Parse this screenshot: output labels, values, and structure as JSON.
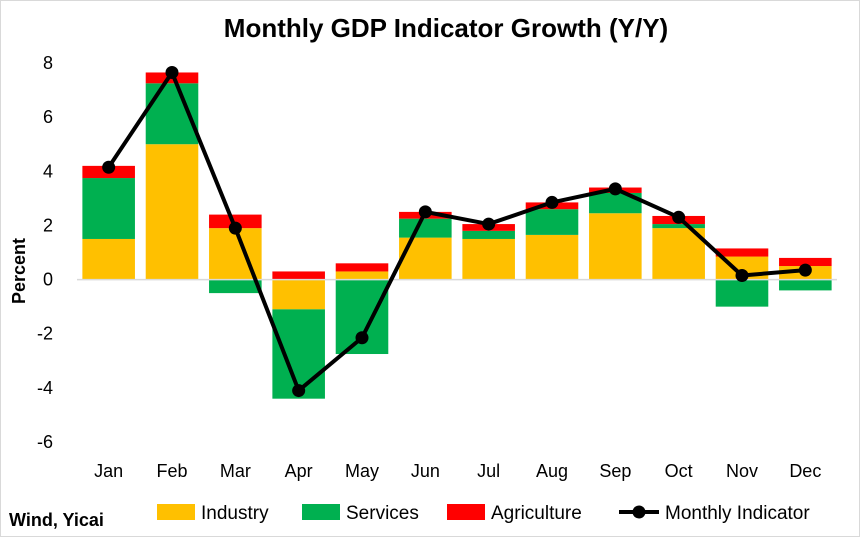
{
  "chart_data": {
    "type": "bar",
    "title": "Monthly GDP Indicator Growth (Y/Y)",
    "xlabel": "",
    "ylabel": "Percent",
    "ylim": [
      -6,
      8
    ],
    "yticks": [
      8,
      6,
      4,
      2,
      0,
      -2,
      -4,
      -6
    ],
    "grid": false,
    "stacked": true,
    "legend_position": "bottom",
    "categories": [
      "Jan",
      "Feb",
      "Mar",
      "Apr",
      "May",
      "Jun",
      "Jul",
      "Aug",
      "Sep",
      "Oct",
      "Nov",
      "Dec"
    ],
    "series": [
      {
        "name": "Industry",
        "type": "bar",
        "color": "#FFC000",
        "values": [
          1.5,
          5.0,
          1.9,
          -1.1,
          0.3,
          1.55,
          1.5,
          1.65,
          2.45,
          1.9,
          0.85,
          0.5
        ]
      },
      {
        "name": "Services",
        "type": "bar",
        "color": "#00B050",
        "values": [
          2.25,
          2.25,
          -0.5,
          -3.3,
          -2.75,
          0.7,
          0.3,
          0.95,
          0.75,
          0.15,
          -1.0,
          -0.4
        ]
      },
      {
        "name": "Agriculture",
        "type": "bar",
        "color": "#FF0000",
        "values": [
          0.45,
          0.4,
          0.5,
          0.3,
          0.3,
          0.25,
          0.25,
          0.25,
          0.2,
          0.3,
          0.3,
          0.3
        ]
      },
      {
        "name": "Monthly Indicator",
        "type": "line",
        "color": "#000000",
        "values": [
          4.15,
          7.65,
          1.9,
          -4.1,
          -2.15,
          2.5,
          2.05,
          2.85,
          3.35,
          2.3,
          0.15,
          0.35
        ]
      }
    ]
  },
  "source": "Wind, Yicai"
}
